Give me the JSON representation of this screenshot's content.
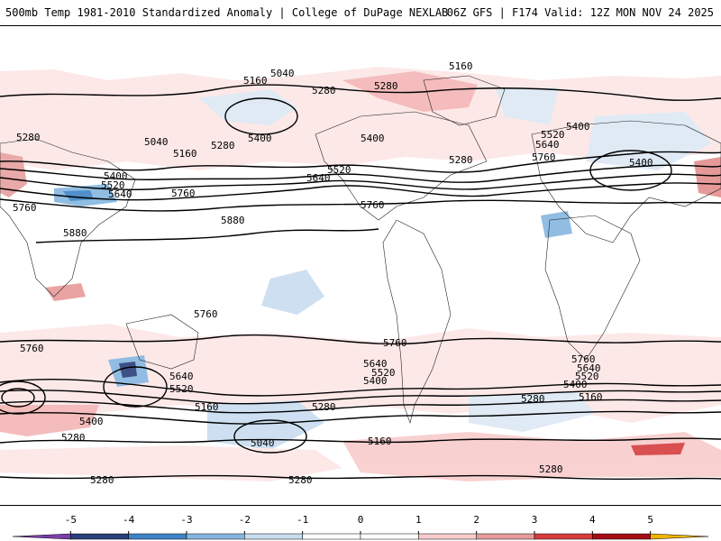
{
  "header": {
    "left": "500mb Temp 1981-2010 Standardized Anomaly | College of DuPage NEXLAB",
    "right": "06Z GFS | F174 Valid: 12Z MON NOV 24 2025"
  },
  "contours": {
    "labels": [
      {
        "id": "c5040-top",
        "text": "5040"
      },
      {
        "id": "c5160-top",
        "text": "5160"
      },
      {
        "id": "c5160-a",
        "text": "5160"
      },
      {
        "id": "c5280-a",
        "text": "5280"
      },
      {
        "id": "c5280-b",
        "text": "5280"
      },
      {
        "id": "c5280-c",
        "text": "5280"
      },
      {
        "id": "c5040-a",
        "text": "5040"
      },
      {
        "id": "c5280-d",
        "text": "5280"
      },
      {
        "id": "c5400-a",
        "text": "5400"
      },
      {
        "id": "c5160-b",
        "text": "5160"
      },
      {
        "id": "c5400-b",
        "text": "5400"
      },
      {
        "id": "c5520-a",
        "text": "5520"
      },
      {
        "id": "c5640-a",
        "text": "5640"
      },
      {
        "id": "c5400-c",
        "text": "5400"
      },
      {
        "id": "c5520-b",
        "text": "5520"
      },
      {
        "id": "c5640-b",
        "text": "5640"
      },
      {
        "id": "c5760-a",
        "text": "5760"
      },
      {
        "id": "c5280-e",
        "text": "5280"
      },
      {
        "id": "c5400-d",
        "text": "5400"
      },
      {
        "id": "c5520-c",
        "text": "5520"
      },
      {
        "id": "c5640-c",
        "text": "5640"
      },
      {
        "id": "c5760-b",
        "text": "5760"
      },
      {
        "id": "c5400-e",
        "text": "5400"
      },
      {
        "id": "c5760-c",
        "text": "5760"
      },
      {
        "id": "c5880-a",
        "text": "5880"
      },
      {
        "id": "c5880-b",
        "text": "5880"
      },
      {
        "id": "c5760-d",
        "text": "5760"
      },
      {
        "id": "c5760-e",
        "text": "5760"
      },
      {
        "id": "c5760-f",
        "text": "5760"
      },
      {
        "id": "c5760-g",
        "text": "5760"
      },
      {
        "id": "c5640-d",
        "text": "5640"
      },
      {
        "id": "c5520-d",
        "text": "5520"
      },
      {
        "id": "c5640-e",
        "text": "5640"
      },
      {
        "id": "c5520-e",
        "text": "5520"
      },
      {
        "id": "c5400-f",
        "text": "5400"
      },
      {
        "id": "c5760-h",
        "text": "5760"
      },
      {
        "id": "c5640-f",
        "text": "5640"
      },
      {
        "id": "c5520-f",
        "text": "5520"
      },
      {
        "id": "c5400-g",
        "text": "5400"
      },
      {
        "id": "c5280-f",
        "text": "5280"
      },
      {
        "id": "c5160-c",
        "text": "5160"
      },
      {
        "id": "c5400-h",
        "text": "5400"
      },
      {
        "id": "c5280-g",
        "text": "5280"
      },
      {
        "id": "c5160-d",
        "text": "5160"
      },
      {
        "id": "c5280-h",
        "text": "5280"
      },
      {
        "id": "c5040-b",
        "text": "5040"
      },
      {
        "id": "c5160-e",
        "text": "5160"
      },
      {
        "id": "c5280-i",
        "text": "5280"
      },
      {
        "id": "c5280-j",
        "text": "5280"
      },
      {
        "id": "c5280-k",
        "text": "5280"
      }
    ]
  },
  "colorbar": {
    "ticks": [
      "-5",
      "-4",
      "-3",
      "-2",
      "-1",
      "0",
      "1",
      "2",
      "3",
      "4",
      "5"
    ],
    "colors": [
      "#7b3fa8",
      "#2a3f7a",
      "#3f83c6",
      "#86b6e0",
      "#c8dcf0",
      "#ffffff",
      "#ffffff",
      "#f8cccc",
      "#e79a9a",
      "#d63c3c",
      "#a50f15",
      "#f0b400"
    ]
  }
}
